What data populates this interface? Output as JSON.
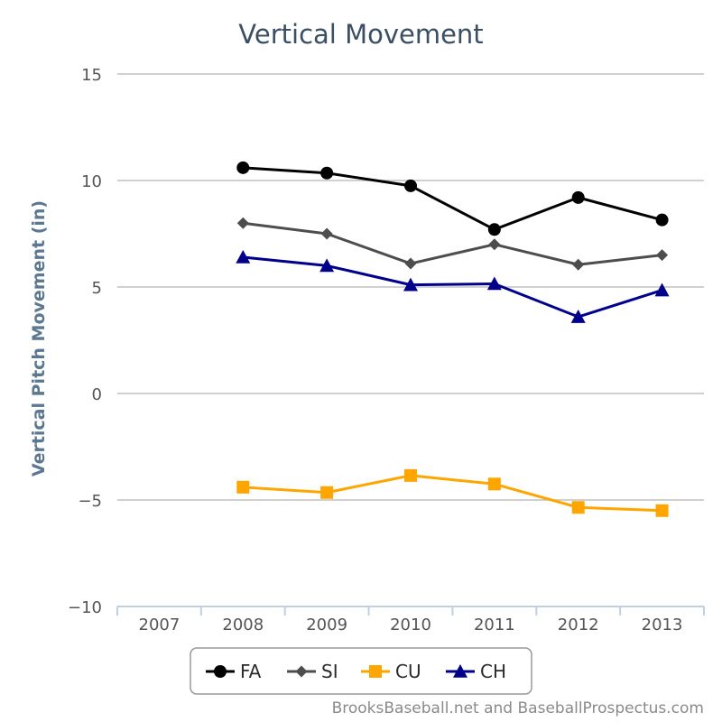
{
  "chart_data": {
    "type": "line",
    "title": "Vertical Movement",
    "xlabel": "",
    "ylabel": "Vertical Pitch Movement (in)",
    "categories": [
      "2007",
      "2008",
      "2009",
      "2010",
      "2011",
      "2012",
      "2013"
    ],
    "ylim": [
      -10,
      15
    ],
    "yticks": [
      "15",
      "10",
      "5",
      "0",
      "−5",
      "−10"
    ],
    "ytick_values": [
      15,
      10,
      5,
      0,
      -5,
      -10
    ],
    "grid": true,
    "legend_position": "bottom",
    "series": [
      {
        "name": "FA",
        "color": "#000000",
        "marker": "circle",
        "values": [
          null,
          10.6,
          10.35,
          9.75,
          7.7,
          9.2,
          8.15
        ]
      },
      {
        "name": "SI",
        "color": "#4d4d4d",
        "marker": "diamond",
        "values": [
          null,
          8.0,
          7.5,
          6.1,
          7.0,
          6.05,
          6.5
        ]
      },
      {
        "name": "CU",
        "color": "#ffa500",
        "marker": "square",
        "values": [
          null,
          -4.4,
          -4.65,
          -3.85,
          -4.25,
          -5.35,
          -5.5
        ]
      },
      {
        "name": "CH",
        "color": "#00008b",
        "marker": "triangle",
        "values": [
          null,
          6.4,
          6.0,
          5.1,
          5.15,
          3.6,
          4.85
        ]
      }
    ]
  },
  "credit": "BrooksBaseball.net and BaseballProspectus.com"
}
